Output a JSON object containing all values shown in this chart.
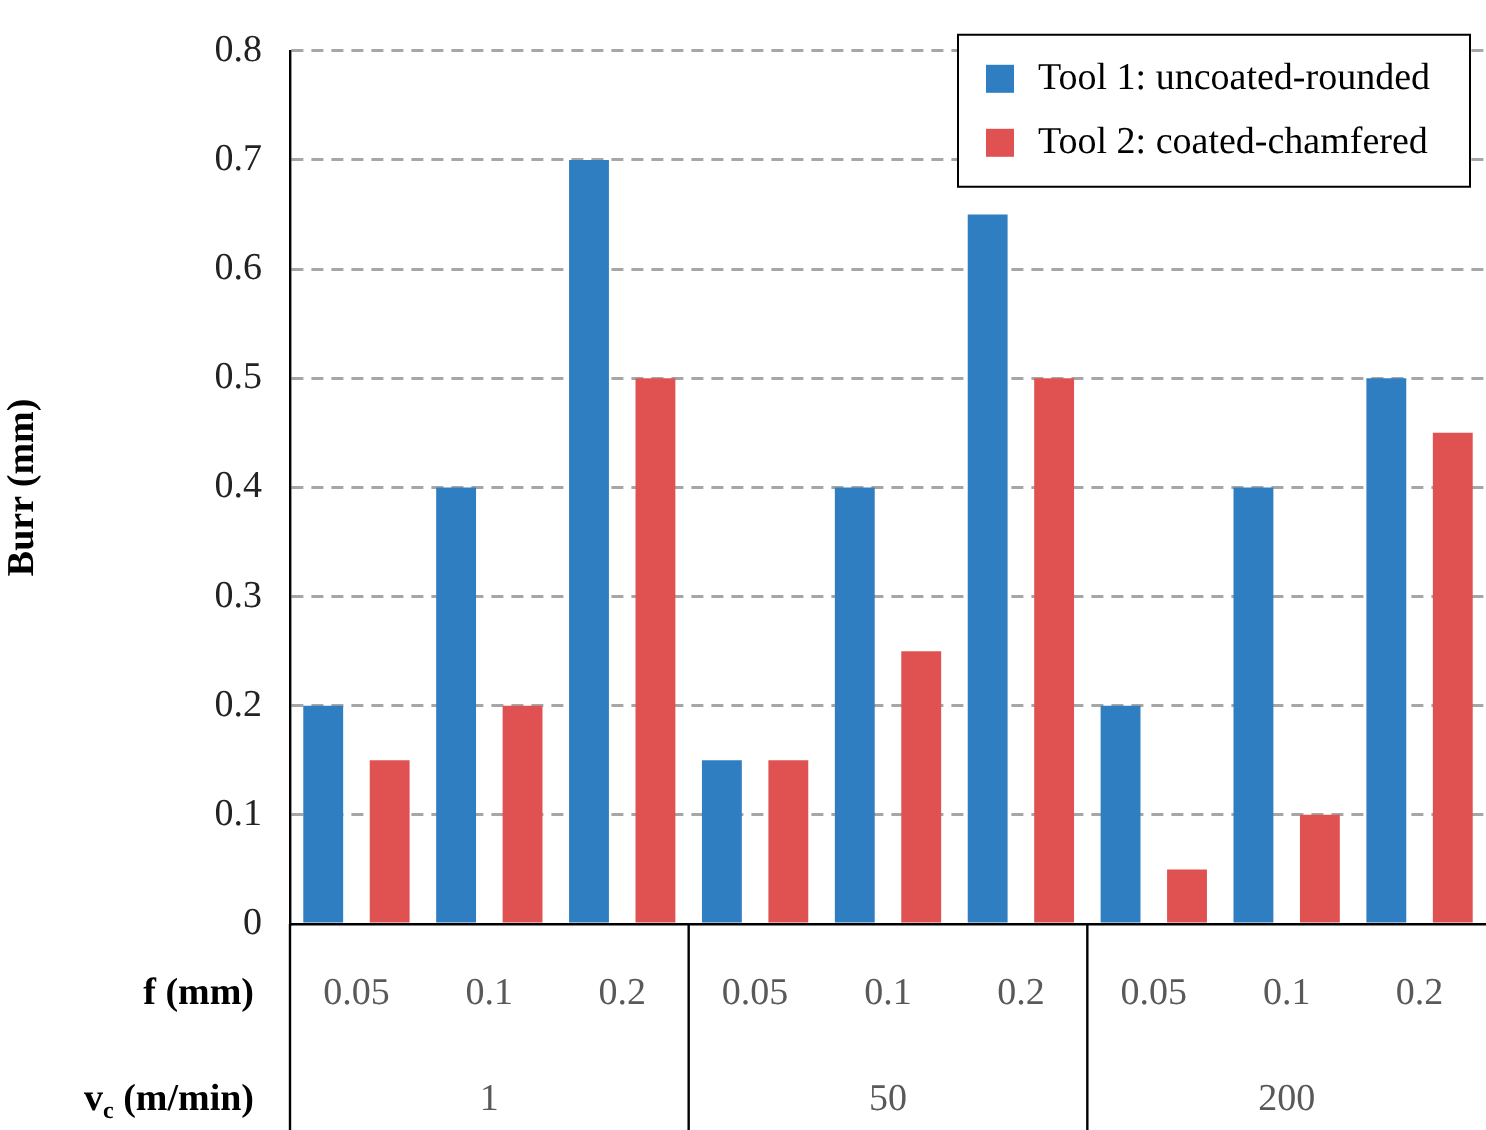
{
  "chart_data": {
    "type": "bar",
    "ylabel": "Burr (mm)",
    "xlabel": "f (mm)",
    "categories": [
      "0.05",
      "0.1",
      "0.2",
      "0.05",
      "0.1",
      "0.2",
      "0.05",
      "0.1",
      "0.2"
    ],
    "series": [
      {
        "name": "Tool 1: uncoated-rounded",
        "color": "#2e7ec1",
        "values": [
          0.2,
          0.4,
          0.7,
          0.15,
          0.4,
          0.65,
          0.2,
          0.4,
          0.5
        ]
      },
      {
        "name": "Tool 2: coated-chamfered",
        "color": "#e05252",
        "values": [
          0.15,
          0.2,
          0.5,
          0.15,
          0.25,
          0.5,
          0.05,
          0.1,
          0.45
        ]
      }
    ],
    "annotations": [
      "v$_{c}$ (m/min)",
      "1",
      "50",
      "200"
    ],
    "ylim": [
      0,
      0.8
    ],
    "yticks": [
      0,
      0.1,
      0.2,
      0.3,
      0.4,
      0.5,
      0.6,
      0.7,
      0.8
    ],
    "grid": "y",
    "legend": "top right"
  }
}
